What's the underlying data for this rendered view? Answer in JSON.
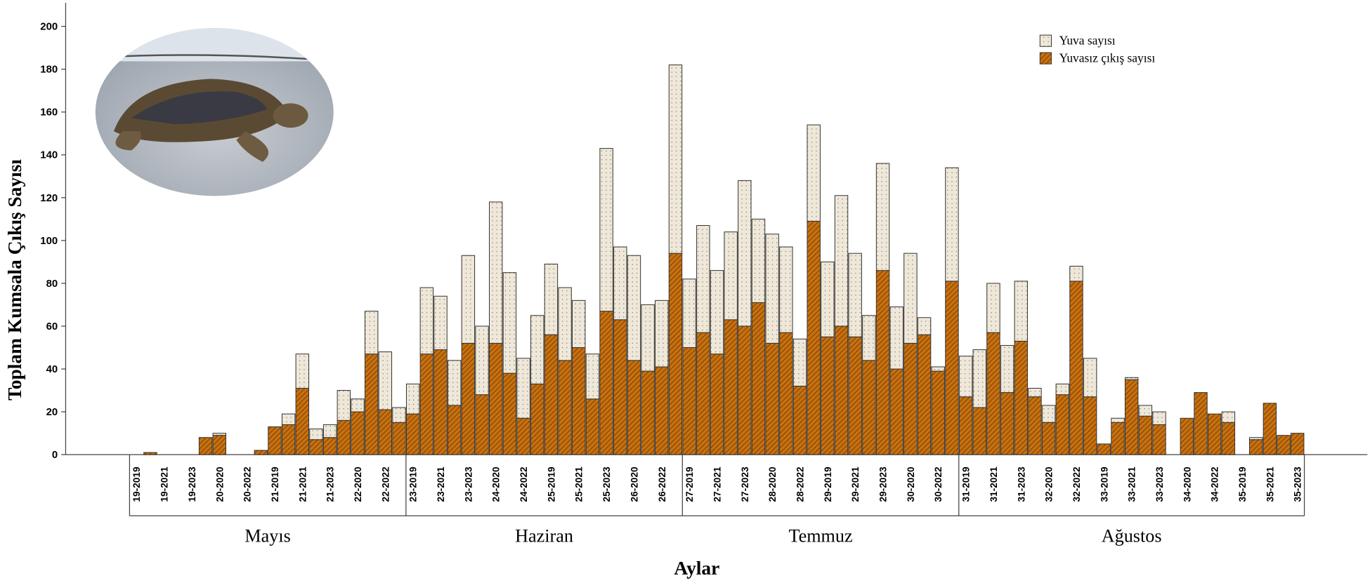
{
  "chart_data": {
    "type": "stacked_bar",
    "y_label": "Toplam Kumsala Çıkış Sayısı",
    "x_label": "Aylar",
    "categories": [
      "19-2019",
      null,
      "19-2021",
      null,
      "19-2023",
      null,
      "20-2020",
      null,
      "20-2022",
      null,
      "21-2019",
      null,
      "21-2021",
      null,
      "21-2023",
      null,
      "22-2020",
      null,
      "22-2022",
      null,
      "23-2019",
      null,
      "23-2021",
      null,
      "23-2023",
      null,
      "24-2020",
      null,
      "24-2022",
      null,
      "25-2019",
      null,
      "25-2021",
      null,
      "25-2023",
      null,
      "26-2020",
      null,
      "26-2022",
      null,
      "27-2019",
      null,
      "27-2021",
      null,
      "27-2023",
      null,
      "28-2020",
      null,
      "28-2022",
      null,
      "29-2019",
      null,
      "29-2021",
      null,
      "29-2023",
      null,
      "30-2020",
      null,
      "30-2022",
      null,
      "31-2019",
      null,
      "31-2021",
      null,
      "31-2023",
      null,
      "32-2020",
      null,
      "32-2022",
      null,
      "33-2019",
      null,
      "33-2021",
      null,
      "33-2023",
      null,
      "34-2020",
      null,
      "34-2022",
      null,
      "35-2019",
      null,
      "35-2021",
      null,
      "35-2023"
    ],
    "groups": [
      {
        "name": "Mayıs",
        "count": 20
      },
      {
        "name": "Haziran",
        "count": 20
      },
      {
        "name": "Temmuz",
        "count": 20
      },
      {
        "name": "Ağustos",
        "count": 25
      }
    ],
    "series": [
      {
        "name": "Yuva sayısı",
        "color": "#efe8d8",
        "values": [
          0,
          0,
          0,
          0,
          0,
          0,
          1,
          0,
          0,
          0,
          0,
          5,
          16,
          5,
          6,
          14,
          6,
          20,
          27,
          7,
          14,
          31,
          25,
          21,
          41,
          32,
          66,
          47,
          28,
          32,
          33,
          34,
          22,
          21,
          76,
          34,
          49,
          31,
          31,
          88,
          32,
          50,
          39,
          41,
          68,
          39,
          51,
          40,
          22,
          45,
          35,
          61,
          39,
          21,
          50,
          29,
          42,
          8,
          2,
          53,
          19,
          27,
          23,
          22,
          28,
          4,
          8,
          5,
          7,
          18,
          0,
          2,
          1,
          5,
          6,
          0,
          0,
          0,
          0,
          5,
          0,
          1,
          0,
          0,
          0
        ]
      },
      {
        "name": "Yuvasız çıkış sayısı",
        "color": "#c8700f",
        "values": [
          0,
          1,
          0,
          0,
          0,
          8,
          9,
          0,
          0,
          2,
          13,
          14,
          31,
          7,
          8,
          16,
          20,
          47,
          21,
          15,
          19,
          47,
          49,
          23,
          52,
          28,
          52,
          38,
          17,
          33,
          56,
          44,
          50,
          26,
          67,
          63,
          44,
          39,
          41,
          94,
          50,
          57,
          47,
          63,
          60,
          71,
          52,
          57,
          32,
          109,
          55,
          60,
          55,
          44,
          86,
          40,
          52,
          56,
          39,
          81,
          27,
          22,
          57,
          29,
          53,
          27,
          15,
          28,
          81,
          27,
          5,
          15,
          35,
          18,
          14,
          0,
          17,
          29,
          19,
          15,
          0,
          7,
          24,
          9,
          10
        ]
      }
    ],
    "ylim": [
      0,
      200
    ],
    "yticks": [
      0,
      20,
      40,
      60,
      80,
      100,
      120,
      140,
      160,
      180,
      200
    ]
  }
}
